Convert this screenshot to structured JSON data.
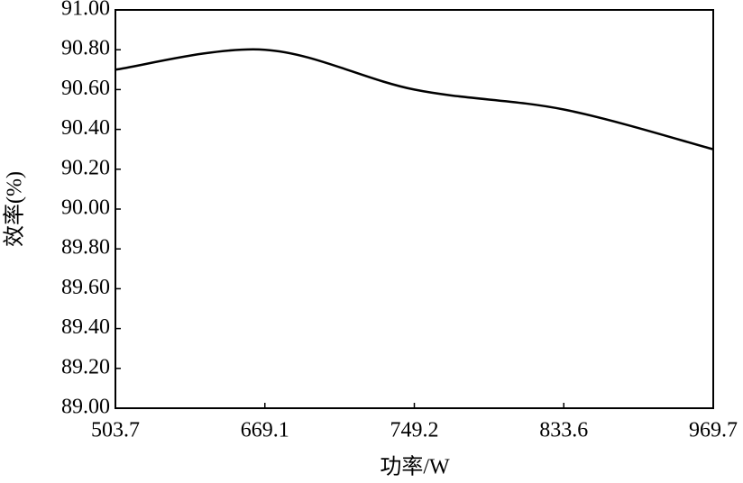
{
  "chart_data": {
    "type": "line",
    "x_label": "功率/W",
    "y_label": "效率(%)",
    "categories": [
      "503.7",
      "669.1",
      "749.2",
      "833.6",
      "969.7"
    ],
    "values": [
      90.7,
      90.8,
      90.6,
      90.5,
      90.3
    ],
    "color": "#000000",
    "ylim": [
      89.0,
      91.0
    ],
    "yticks": [
      {
        "value": 89.0,
        "label": "89.00"
      },
      {
        "value": 89.2,
        "label": "89.20"
      },
      {
        "value": 89.4,
        "label": "89.40"
      },
      {
        "value": 89.6,
        "label": "89.60"
      },
      {
        "value": 89.8,
        "label": "89.80"
      },
      {
        "value": 90.0,
        "label": "90.00"
      },
      {
        "value": 90.2,
        "label": "90.20"
      },
      {
        "value": 90.4,
        "label": "90.40"
      },
      {
        "value": 90.6,
        "label": "90.60"
      },
      {
        "value": 90.8,
        "label": "90.80"
      },
      {
        "value": 91.0,
        "label": "91.00"
      }
    ],
    "grid": false
  }
}
